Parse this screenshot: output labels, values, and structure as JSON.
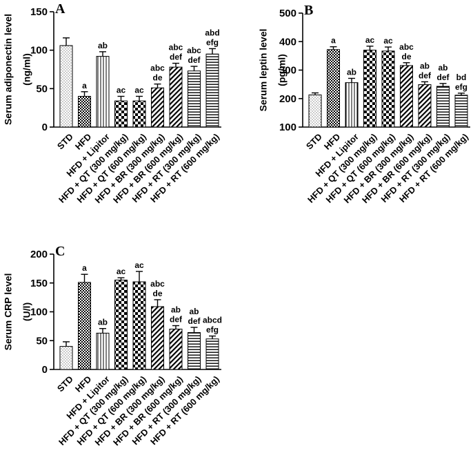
{
  "chart_data": [
    {
      "type": "bar",
      "panel_label": "A",
      "ylabel_line1": "Serum adiponectin level",
      "ylabel_line2": "(ng/ml)",
      "ylim": [
        0,
        150
      ],
      "yticks": [
        0,
        50,
        100,
        150
      ],
      "categories": [
        "STD",
        "HFD",
        "HFD + Lipitor",
        "HFD + QT (300 mg/kg)",
        "HFD + QT (600 mg/kg)",
        "HFD + BR (300 mg/kg)",
        "HFD + BR (600 mg/kg)",
        "HFD + RT (300 mg/kg)",
        "HFD + RT (600 mg/kg)"
      ],
      "values": [
        106,
        40,
        92,
        34,
        34,
        51,
        78,
        73,
        95
      ],
      "errors": [
        10,
        6,
        6,
        6,
        6,
        5,
        5,
        6,
        7
      ],
      "annotations": [
        [],
        [
          "a"
        ],
        [
          "ab"
        ],
        [
          "ac"
        ],
        [
          "ac"
        ],
        [
          "abc",
          "de"
        ],
        [
          "abc",
          "def"
        ],
        [
          "abc",
          "def"
        ],
        [
          "abd",
          "efg"
        ]
      ]
    },
    {
      "type": "bar",
      "panel_label": "B",
      "ylabel_line1": "Serum leptin level",
      "ylabel_line2": "(pg/ml)",
      "ylim": [
        100,
        500
      ],
      "yticks": [
        100,
        200,
        300,
        400,
        500
      ],
      "categories": [
        "STD",
        "HFD",
        "HFD + Lipitor",
        "HFD + QT (300 mg/kg)",
        "HFD + QT (600 mg/kg)",
        "HFD + BR (300 mg/kg)",
        "HFD + BR (600 mg/kg)",
        "HFD + RT (300 mg/kg)",
        "HFD + RT (600 mg/kg)"
      ],
      "values": [
        213,
        372,
        256,
        370,
        367,
        316,
        249,
        243,
        212
      ],
      "errors": [
        7,
        10,
        15,
        14,
        14,
        10,
        10,
        10,
        7
      ],
      "annotations": [
        [],
        [
          "a"
        ],
        [
          "ab"
        ],
        [
          "ac"
        ],
        [
          "ac"
        ],
        [
          "abc",
          "de"
        ],
        [
          "ab",
          "def"
        ],
        [
          "ab",
          "def"
        ],
        [
          "bd",
          "efg"
        ]
      ]
    },
    {
      "type": "bar",
      "panel_label": "C",
      "ylabel_line1": "Serum  CRP level",
      "ylabel_line2": "(U/l)",
      "ylim": [
        0,
        200
      ],
      "yticks": [
        0,
        50,
        100,
        150,
        200
      ],
      "categories": [
        "STD",
        "HFD",
        "HFD + Lipitor",
        "HFD + QT (300 mg/kg)",
        "HFD + QT (600 mg/kg)",
        "HFD + BR (300 mg/kg)",
        "HFD + BR (600 mg/kg)",
        "HFD + RT (300 mg/kg)",
        "HFD + RT (600 mg/kg)"
      ],
      "values": [
        40,
        151,
        63,
        155,
        152,
        109,
        70,
        64,
        53
      ],
      "errors": [
        8,
        14,
        8,
        4,
        18,
        12,
        6,
        9,
        5
      ],
      "annotations": [
        [],
        [
          "a"
        ],
        [
          "ab"
        ],
        [
          "ac"
        ],
        [
          "ac"
        ],
        [
          "abc",
          "de"
        ],
        [
          "ab",
          "def"
        ],
        [
          "ab",
          "def"
        ],
        [
          "abcd",
          "efg"
        ]
      ]
    }
  ]
}
